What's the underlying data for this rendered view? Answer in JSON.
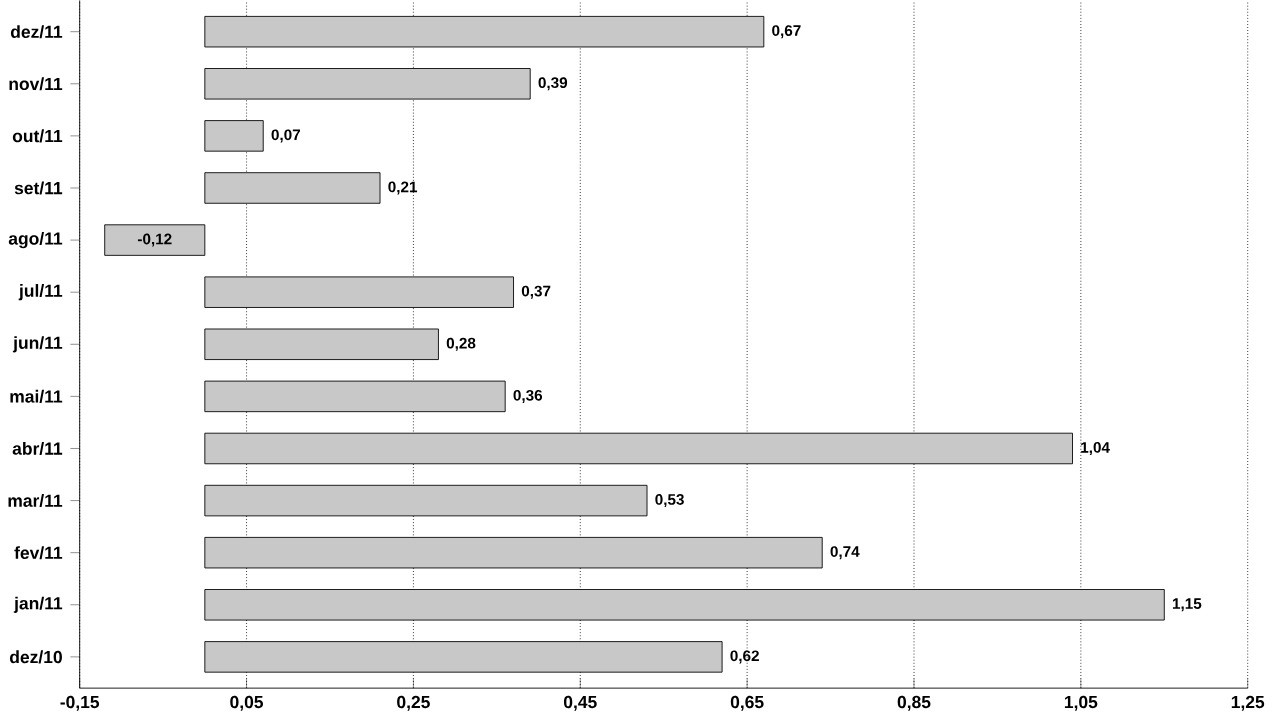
{
  "chart_data": {
    "type": "bar",
    "orientation": "horizontal",
    "categories": [
      "dez/11",
      "nov/11",
      "out/11",
      "set/11",
      "ago/11",
      "jul/11",
      "jun/11",
      "mai/11",
      "abr/11",
      "mar/11",
      "fev/11",
      "jan/11",
      "dez/10"
    ],
    "values": [
      0.67,
      0.39,
      0.07,
      0.21,
      -0.12,
      0.37,
      0.28,
      0.36,
      1.04,
      0.53,
      0.74,
      1.15,
      0.62
    ],
    "value_labels": [
      "0,67",
      "0,39",
      "0,07",
      "0,21",
      "-0,12",
      "0,37",
      "0,28",
      "0,36",
      "1,04",
      "0,53",
      "0,74",
      "1,15",
      "0,62"
    ],
    "color": "#c8c8c8",
    "xlim": [
      -0.15,
      1.25
    ],
    "xticks": [
      {
        "value": -0.15,
        "label": "-0,15"
      },
      {
        "value": 0.05,
        "label": "0,05"
      },
      {
        "value": 0.25,
        "label": "0,25"
      },
      {
        "value": 0.45,
        "label": "0,45"
      },
      {
        "value": 0.65,
        "label": "0,65"
      },
      {
        "value": 0.85,
        "label": "0,85"
      },
      {
        "value": 1.05,
        "label": "1,05"
      },
      {
        "value": 1.25,
        "label": "1,25"
      }
    ],
    "grid": "x"
  }
}
